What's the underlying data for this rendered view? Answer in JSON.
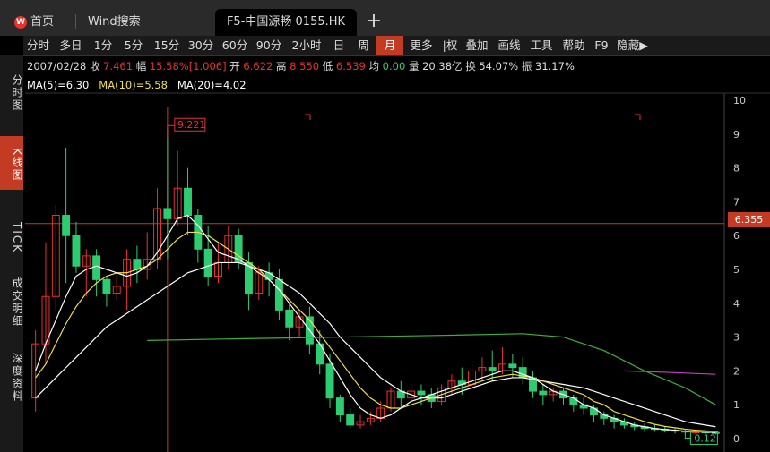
{
  "tabs": {
    "home": "首页",
    "wind": "Wind搜索",
    "active": "F5-中国源畅 0155.HK"
  },
  "toolbar": [
    "分时",
    "多日",
    "1分",
    "5分",
    "15分",
    "30分",
    "60分",
    "90分",
    "2小时",
    "日",
    "周",
    "月",
    "更多",
    "|权",
    "叠加",
    "画线",
    "工具",
    "帮助",
    "F9",
    "隐藏▶"
  ],
  "toolbar_active": "月",
  "leftbar": [
    {
      "label": "分时图",
      "active": false
    },
    {
      "label": "K线图",
      "active": true
    },
    {
      "label": "TICK",
      "active": false
    },
    {
      "label": "成交明细",
      "active": false
    },
    {
      "label": "深度资料",
      "active": false
    }
  ],
  "info": {
    "date": "2007/02/28",
    "close_label": "收",
    "close": "7.461",
    "change_label": "幅",
    "change": "15.58%[1.006]",
    "open_label": "开",
    "open": "6.622",
    "high_label": "高",
    "high": "8.550",
    "low_label": "低",
    "low": "6.539",
    "avg_label": "均",
    "avg": "0.00",
    "vol_label": "量",
    "vol": "20.38亿",
    "turn_label": "换",
    "turn": "54.07%",
    "amp_label": "振",
    "amp": "31.17%"
  },
  "ma": {
    "ma5": "MA(5)=6.30",
    "ma10": "MA(10)=5.58",
    "ma20": "MA(20)=4.02"
  },
  "colors": {
    "up": "#e8322c",
    "down": "#2ecc71",
    "ma5": "#ffffff",
    "ma10": "#f0e040",
    "ma20": "#ffffff",
    "ma60": "#3fae3f",
    "ma120": "#c040c0"
  },
  "chart_data": {
    "type": "candlestick",
    "ylim": [
      0,
      10
    ],
    "yticks": [
      "0",
      "1",
      "2",
      "3",
      "4",
      "5",
      "6",
      "7",
      "8",
      "9",
      "10"
    ],
    "current_price": "6.355",
    "high_marker": "9.221",
    "low_marker": "0.12",
    "candles": [
      [
        1.2,
        2.8,
        0.8,
        3.2
      ],
      [
        2.8,
        4.2,
        2.2,
        5.8
      ],
      [
        4.2,
        6.6,
        3.8,
        6.9
      ],
      [
        6.6,
        6.0,
        4.6,
        8.6
      ],
      [
        6.0,
        5.1,
        4.9,
        6.4
      ],
      [
        5.1,
        5.4,
        4.2,
        5.6
      ],
      [
        5.4,
        4.7,
        4.2,
        5.6
      ],
      [
        4.7,
        4.3,
        3.9,
        4.8
      ],
      [
        4.3,
        4.5,
        4.1,
        4.9
      ],
      [
        4.5,
        5.3,
        3.8,
        5.6
      ],
      [
        5.3,
        5.0,
        4.6,
        5.7
      ],
      [
        5.0,
        5.3,
        4.7,
        6.1
      ],
      [
        5.3,
        6.8,
        5.0,
        7.4
      ],
      [
        6.8,
        6.5,
        5.3,
        9.2
      ],
      [
        6.5,
        7.4,
        6.3,
        8.5
      ],
      [
        7.4,
        6.6,
        6.0,
        8.0
      ],
      [
        6.6,
        5.6,
        5.2,
        6.8
      ],
      [
        5.6,
        4.8,
        4.5,
        6.3
      ],
      [
        4.8,
        5.2,
        4.6,
        5.8
      ],
      [
        5.2,
        6.0,
        5.0,
        6.3
      ],
      [
        6.0,
        5.2,
        5.0,
        6.2
      ],
      [
        5.2,
        4.3,
        3.8,
        5.5
      ],
      [
        4.3,
        4.9,
        4.1,
        5.1
      ],
      [
        4.9,
        4.7,
        4.2,
        5.2
      ],
      [
        4.7,
        3.8,
        3.5,
        5.0
      ],
      [
        3.8,
        3.3,
        2.9,
        4.0
      ],
      [
        3.3,
        3.6,
        3.0,
        3.8
      ],
      [
        3.6,
        2.8,
        2.5,
        3.9
      ],
      [
        2.8,
        2.2,
        1.9,
        3.2
      ],
      [
        2.2,
        1.2,
        0.9,
        2.5
      ],
      [
        1.2,
        0.7,
        0.5,
        1.3
      ],
      [
        0.7,
        0.4,
        0.3,
        0.9
      ],
      [
        0.4,
        0.5,
        0.3,
        0.7
      ],
      [
        0.5,
        0.6,
        0.4,
        0.8
      ],
      [
        0.6,
        0.9,
        0.5,
        1.1
      ],
      [
        0.9,
        1.4,
        0.8,
        1.5
      ],
      [
        1.4,
        1.2,
        0.9,
        1.7
      ],
      [
        1.2,
        1.4,
        1.1,
        1.6
      ],
      [
        1.4,
        1.3,
        1.0,
        1.6
      ],
      [
        1.3,
        1.1,
        0.9,
        1.5
      ],
      [
        1.1,
        1.5,
        1.0,
        1.6
      ],
      [
        1.5,
        1.7,
        1.3,
        1.9
      ],
      [
        1.7,
        1.6,
        1.3,
        2.1
      ],
      [
        1.6,
        2.0,
        1.5,
        2.3
      ],
      [
        2.0,
        2.1,
        1.7,
        2.4
      ],
      [
        2.1,
        2.0,
        1.7,
        2.6
      ],
      [
        2.0,
        2.2,
        1.9,
        2.7
      ],
      [
        2.2,
        2.1,
        1.8,
        2.5
      ],
      [
        2.1,
        1.8,
        1.6,
        2.4
      ],
      [
        1.8,
        1.4,
        1.2,
        2.0
      ],
      [
        1.4,
        1.3,
        1.0,
        1.6
      ],
      [
        1.3,
        1.4,
        1.1,
        1.5
      ],
      [
        1.4,
        1.2,
        1.0,
        1.5
      ],
      [
        1.2,
        1.0,
        0.8,
        1.3
      ],
      [
        1.0,
        0.9,
        0.7,
        1.2
      ],
      [
        0.9,
        0.7,
        0.5,
        1.0
      ],
      [
        0.7,
        0.6,
        0.4,
        0.8
      ],
      [
        0.6,
        0.5,
        0.3,
        0.7
      ],
      [
        0.5,
        0.4,
        0.3,
        0.6
      ],
      [
        0.4,
        0.35,
        0.25,
        0.5
      ],
      [
        0.35,
        0.3,
        0.2,
        0.45
      ],
      [
        0.3,
        0.28,
        0.2,
        0.4
      ],
      [
        0.28,
        0.25,
        0.18,
        0.35
      ],
      [
        0.25,
        0.22,
        0.15,
        0.3
      ],
      [
        0.22,
        0.2,
        0.15,
        0.28
      ],
      [
        0.2,
        0.2,
        0.14,
        0.26
      ],
      [
        0.2,
        0.18,
        0.13,
        0.24
      ],
      [
        0.18,
        0.17,
        0.12,
        0.22
      ]
    ],
    "ma5": [
      2.0,
      2.8,
      3.5,
      4.2,
      4.8,
      5.0,
      5.1,
      5.0,
      4.9,
      4.8,
      4.9,
      5.1,
      5.5,
      6.0,
      6.5,
      6.6,
      6.3,
      5.9,
      5.5,
      5.4,
      5.3,
      5.1,
      4.9,
      4.7,
      4.4,
      4.0,
      3.6,
      3.2,
      2.8,
      2.3,
      1.8,
      1.3,
      0.9,
      0.7,
      0.6,
      0.7,
      0.9,
      1.1,
      1.2,
      1.3,
      1.4,
      1.5,
      1.6,
      1.7,
      1.8,
      1.9,
      2.0,
      2.0,
      1.9,
      1.8,
      1.6,
      1.4,
      1.3,
      1.2,
      1.0,
      0.9,
      0.7,
      0.6,
      0.5,
      0.4,
      0.35,
      0.3,
      0.27,
      0.25,
      0.22,
      0.2,
      0.19,
      0.18
    ],
    "ma10": [
      1.8,
      2.2,
      2.8,
      3.4,
      3.9,
      4.3,
      4.6,
      4.8,
      4.9,
      4.9,
      5.0,
      5.1,
      5.3,
      5.6,
      5.9,
      6.1,
      6.1,
      6.0,
      5.8,
      5.6,
      5.4,
      5.2,
      5.0,
      4.7,
      4.4,
      4.1,
      3.8,
      3.5,
      3.1,
      2.7,
      2.3,
      1.9,
      1.5,
      1.2,
      1.0,
      0.9,
      0.9,
      1.0,
      1.1,
      1.2,
      1.3,
      1.4,
      1.5,
      1.6,
      1.7,
      1.8,
      1.85,
      1.9,
      1.85,
      1.8,
      1.7,
      1.6,
      1.5,
      1.4,
      1.3,
      1.1,
      1.0,
      0.8,
      0.7,
      0.6,
      0.5,
      0.42,
      0.36,
      0.32,
      0.28,
      0.25,
      0.23,
      0.21
    ],
    "ma20": [
      1.2,
      1.5,
      1.8,
      2.1,
      2.4,
      2.7,
      3.0,
      3.3,
      3.5,
      3.7,
      3.9,
      4.1,
      4.3,
      4.5,
      4.7,
      4.9,
      5.0,
      5.1,
      5.2,
      5.2,
      5.2,
      5.1,
      5.0,
      4.9,
      4.7,
      4.5,
      4.3,
      4.0,
      3.7,
      3.4,
      3.0,
      2.7,
      2.4,
      2.1,
      1.8,
      1.6,
      1.4,
      1.3,
      1.2,
      1.2,
      1.2,
      1.3,
      1.4,
      1.5,
      1.6,
      1.7,
      1.75,
      1.8,
      1.8,
      1.75,
      1.7,
      1.65,
      1.6,
      1.55,
      1.5,
      1.4,
      1.3,
      1.2,
      1.1,
      1.0,
      0.9,
      0.8,
      0.7,
      0.6,
      0.5,
      0.45,
      0.4,
      0.35
    ],
    "ma60": [
      [
        11,
        2.9
      ],
      [
        20,
        2.95
      ],
      [
        30,
        3.0
      ],
      [
        40,
        3.05
      ],
      [
        48,
        3.1
      ],
      [
        52,
        3.0
      ],
      [
        56,
        2.6
      ],
      [
        60,
        2.0
      ],
      [
        64,
        1.5
      ],
      [
        67,
        1.0
      ]
    ],
    "ma120": [
      [
        58,
        2.0
      ],
      [
        63,
        1.95
      ],
      [
        67,
        1.9
      ]
    ]
  }
}
